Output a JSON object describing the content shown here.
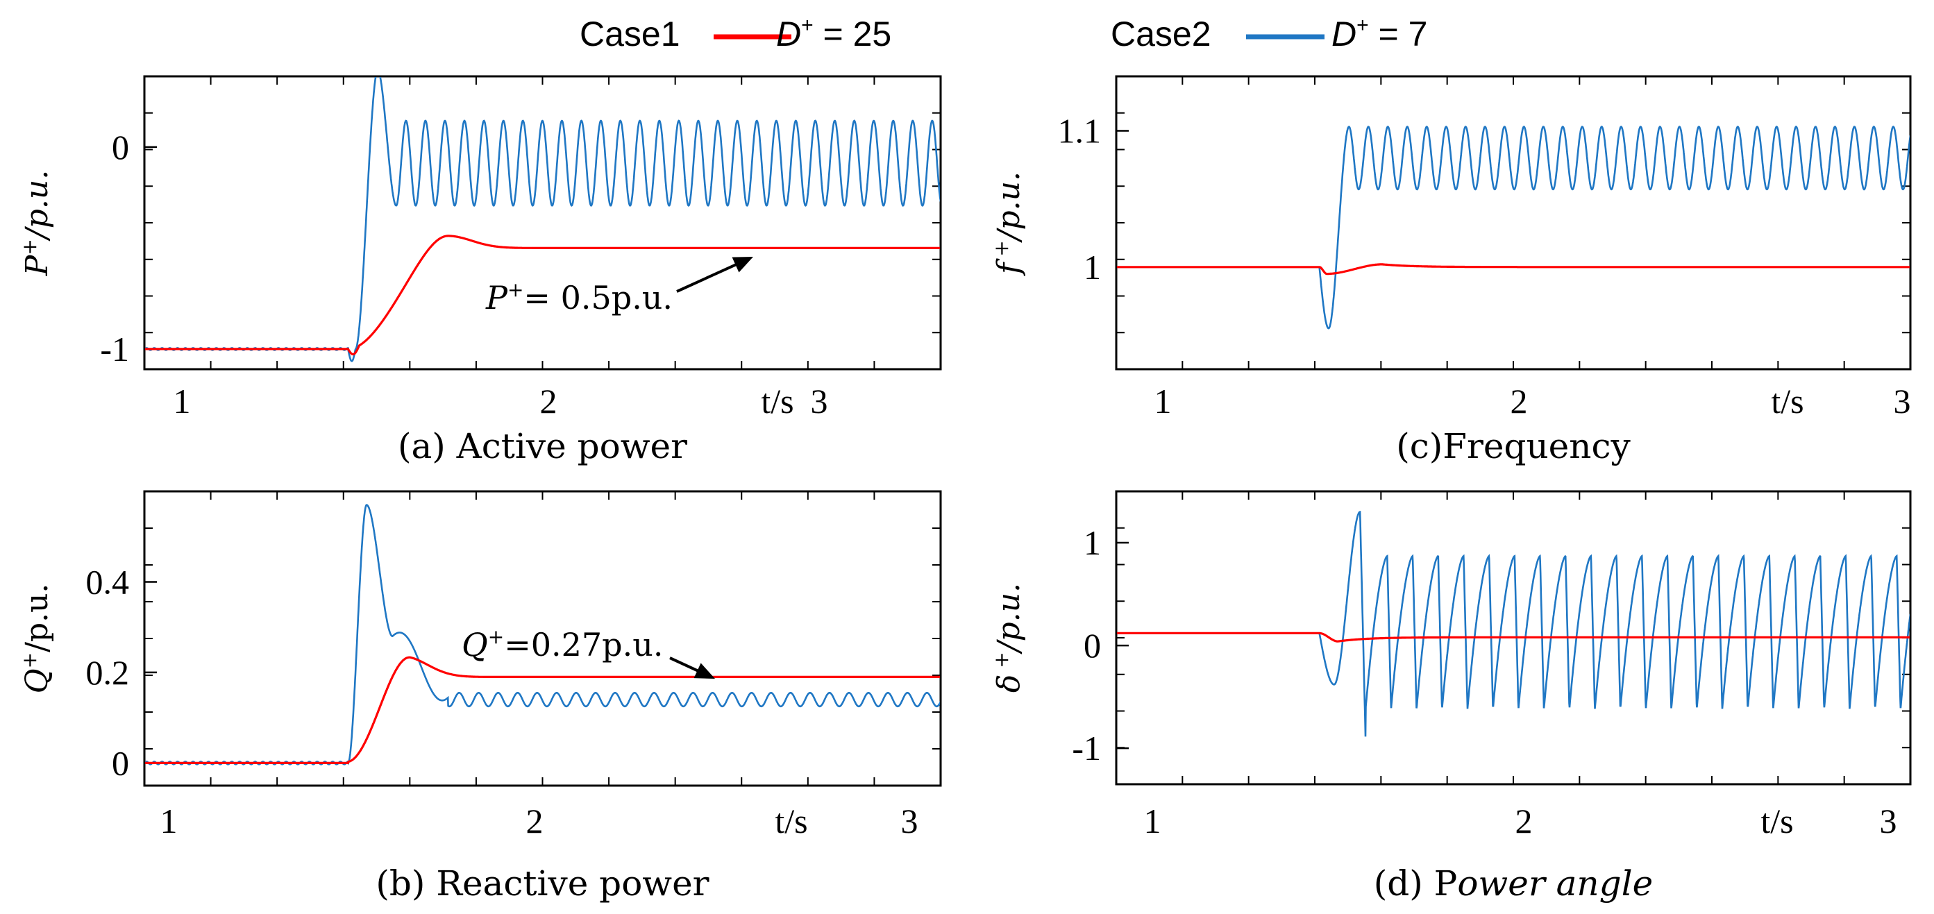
{
  "colors": {
    "case1": "#ff0000",
    "case2": "#1f77c4",
    "axis": "#000000"
  },
  "legend": {
    "case1": {
      "name": "Case1",
      "symbol": "D",
      "sup": "+",
      "value": " = 25"
    },
    "case2": {
      "name": "Case2",
      "symbol": "D",
      "sup": "+",
      "value": " = 7"
    }
  },
  "chart_data": [
    {
      "id": "a",
      "type": "line",
      "title": "(a) Active power",
      "ylabel": {
        "symbol": "P",
        "sup": "+",
        "unit": "/p.u."
      },
      "xlabel": "t/s",
      "xlim": [
        0.9,
        3.05
      ],
      "ylim": [
        -1.1,
        0.35
      ],
      "xticks": [
        "1",
        "2",
        "3"
      ],
      "yticks": [
        {
          "v": 0,
          "label": "0"
        },
        {
          "v": -1,
          "label": "-1"
        }
      ],
      "annotation": {
        "symbol": "P",
        "sup": "+",
        "text": "= 0.5p.u."
      },
      "series": [
        {
          "name": "Case1",
          "color_key": "case1",
          "initial": -1.0,
          "final": -0.5,
          "step_time": 1.45,
          "peak": -0.44,
          "peak_time": 1.72,
          "settle_time": 1.95,
          "oscillation_amplitude": 0
        },
        {
          "name": "Case2",
          "color_key": "case2",
          "initial": -1.0,
          "step_time": 1.45,
          "peak": 0.38,
          "peak_time": 1.53,
          "oscillation_center": -0.08,
          "oscillation_amplitude": 0.21,
          "oscillation_frequency_hz": 19
        }
      ]
    },
    {
      "id": "b",
      "type": "line",
      "title": "(b) Reactive power",
      "ylabel": {
        "symbol": "Q",
        "sup": "+",
        "unit": "/p.u."
      },
      "xlabel": "t/s",
      "xlim": [
        0.9,
        3.05
      ],
      "ylim": [
        -0.05,
        0.6
      ],
      "xticks": [
        "1",
        "2",
        "3"
      ],
      "yticks": [
        {
          "v": 0,
          "label": "0"
        },
        {
          "v": 0.2,
          "label": "0.2"
        },
        {
          "v": 0.4,
          "label": "0.4"
        }
      ],
      "annotation": {
        "symbol": "Q",
        "sup": "+",
        "text": "=0.27p.u."
      },
      "series": [
        {
          "name": "Case1",
          "color_key": "case1",
          "initial": 0.0,
          "final": 0.19,
          "step_time": 1.45,
          "peak": 0.235,
          "peak_time": 1.6,
          "oscillation_amplitude": 0
        },
        {
          "name": "Case2",
          "color_key": "case2",
          "initial": 0.0,
          "step_time": 1.45,
          "peak": 0.57,
          "peak_time": 1.5,
          "oscillation_center": 0.14,
          "oscillation_amplitude": 0.015,
          "oscillation_frequency_hz": 19
        }
      ]
    },
    {
      "id": "c",
      "type": "line",
      "title": "(c)Frequency",
      "ylabel": {
        "symbol": "f",
        "sup": " +",
        "unit": "/p.u."
      },
      "xlabel": "t/s",
      "xlim": [
        0.9,
        3.05
      ],
      "ylim": [
        0.925,
        1.14
      ],
      "xticks": [
        "1",
        "2",
        "3"
      ],
      "yticks": [
        {
          "v": 1.1,
          "label": "1.1"
        },
        {
          "v": 1.0,
          "label": "1"
        }
      ],
      "series": [
        {
          "name": "Case1",
          "color_key": "case1",
          "initial": 1.0,
          "final": 1.0,
          "step_time": 1.45,
          "dip": 0.995,
          "peak": 1.002,
          "oscillation_amplitude": 0
        },
        {
          "name": "Case2",
          "color_key": "case2",
          "initial": 1.0,
          "step_time": 1.45,
          "dip": 0.955,
          "dip_time": 1.47,
          "oscillation_center": 1.08,
          "oscillation_amplitude": 0.023,
          "oscillation_frequency_hz": 19
        }
      ]
    },
    {
      "id": "d",
      "type": "line",
      "title": "(d) Power angle",
      "title_main": "(d) P",
      "title_italic": "ower angle",
      "ylabel": {
        "symbol": "δ",
        "sup": " +",
        "unit": "/p.u."
      },
      "xlabel": "t/s",
      "xlim": [
        0.9,
        3.05
      ],
      "ylim": [
        -1.35,
        1.5
      ],
      "xticks": [
        "1",
        "2",
        "3"
      ],
      "yticks": [
        {
          "v": 1,
          "label": "1"
        },
        {
          "v": 0,
          "label": "0"
        },
        {
          "v": -1,
          "label": "-1"
        }
      ],
      "series": [
        {
          "name": "Case1",
          "color_key": "case1",
          "initial": 0.12,
          "final": 0.08,
          "step_time": 1.45,
          "dip": 0.04,
          "oscillation_amplitude": 0
        },
        {
          "name": "Case2",
          "color_key": "case2",
          "initial": 0.12,
          "step_time": 1.45,
          "first_min": -0.38,
          "first_max": 1.3,
          "sawtooth_max": 0.87,
          "sawtooth_min": -0.62,
          "oscillation_frequency_hz": 14.5
        }
      ]
    }
  ]
}
